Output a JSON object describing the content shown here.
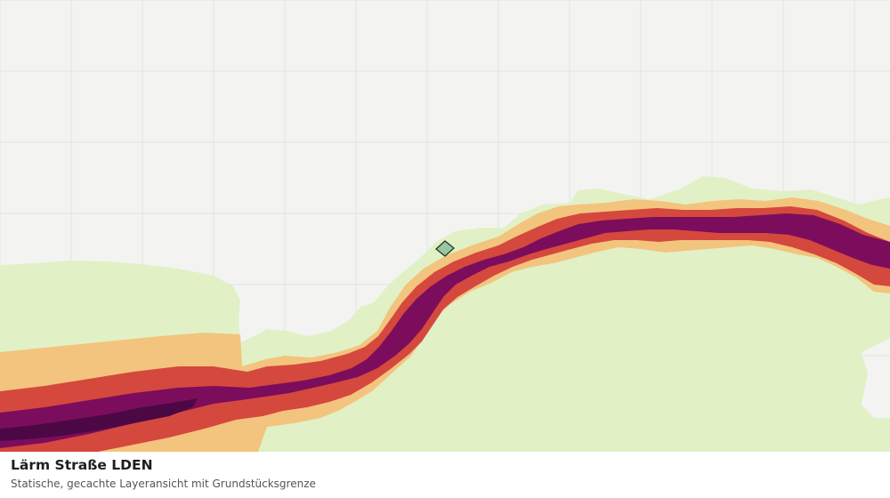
{
  "layer": {
    "title": "Lärm Straße LDEN",
    "subtitle": "Statische, gecachte Layeransicht mit Grundstücksgrenze"
  },
  "colors": {
    "background": "#f3f4f2",
    "grid": "#e2e3e0",
    "noise_class_1": "#e2f0c6",
    "noise_class_2": "#f3c47e",
    "noise_class_3": "#d5483d",
    "noise_class_4": "#7c0d5c",
    "noise_class_5": "#4c0845",
    "parcel_fill": "#9cc6a0",
    "parcel_outline": "#1e3a24"
  }
}
